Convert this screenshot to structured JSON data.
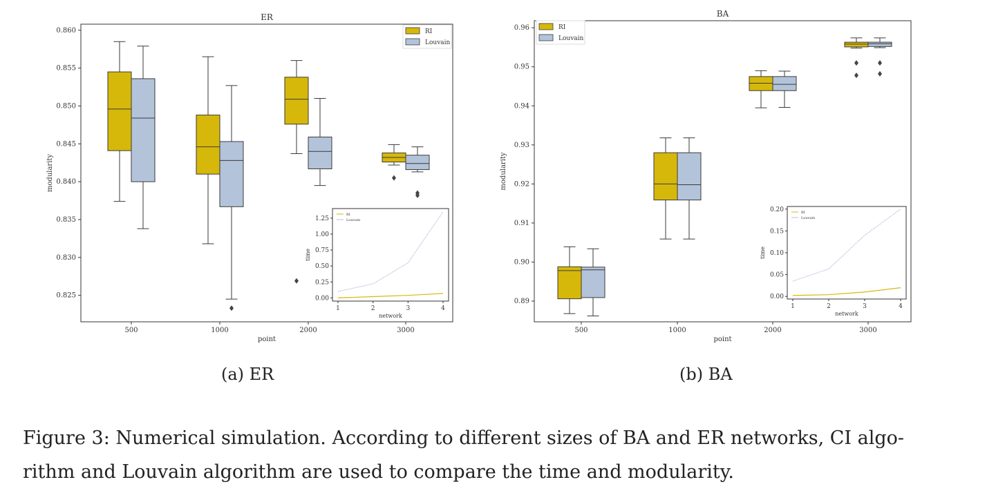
{
  "colors": {
    "ci": "#d6b80a",
    "louvain": "#b3c3da",
    "box_edge": "#3a3a3a",
    "frame": "#333333"
  },
  "panels": [
    {
      "id": "er",
      "subcaption": "(a) ER",
      "chart_data": {
        "type": "box",
        "title": "ER",
        "xlabel": "point",
        "ylabel": "modularity",
        "categories": [
          "500",
          "1000",
          "2000",
          "3000"
        ],
        "ylim": [
          0.8215,
          0.8608
        ],
        "yticks": [
          "0.825",
          "0.830",
          "0.835",
          "0.840",
          "0.845",
          "0.850",
          "0.855",
          "0.860"
        ],
        "legend": {
          "location": "top-right",
          "entries": [
            "RI",
            "Louvain"
          ]
        },
        "series": [
          {
            "name": "RI",
            "boxes": [
              {
                "min": 0.8374,
                "q1": 0.8441,
                "median": 0.8496,
                "q3": 0.8545,
                "max": 0.8585,
                "outliers": []
              },
              {
                "min": 0.8318,
                "q1": 0.841,
                "median": 0.8446,
                "q3": 0.8488,
                "max": 0.8565,
                "outliers": []
              },
              {
                "min": 0.8437,
                "q1": 0.8476,
                "median": 0.8509,
                "q3": 0.8538,
                "max": 0.856,
                "outliers": [
                  0.8269
                ]
              },
              {
                "min": 0.8422,
                "q1": 0.8426,
                "median": 0.8432,
                "q3": 0.8438,
                "max": 0.8449,
                "outliers": [
                  0.8405
                ]
              }
            ]
          },
          {
            "name": "Louvain",
            "boxes": [
              {
                "min": 0.8338,
                "q1": 0.84,
                "median": 0.8484,
                "q3": 0.8536,
                "max": 0.8579,
                "outliers": []
              },
              {
                "min": 0.8245,
                "q1": 0.8367,
                "median": 0.8428,
                "q3": 0.8453,
                "max": 0.8527,
                "outliers": [
                  0.8233
                ]
              },
              {
                "min": 0.8395,
                "q1": 0.8417,
                "median": 0.844,
                "q3": 0.8459,
                "max": 0.851,
                "outliers": []
              },
              {
                "min": 0.8413,
                "q1": 0.8416,
                "median": 0.8424,
                "q3": 0.8435,
                "max": 0.8446,
                "outliers": [
                  0.8385,
                  0.8382
                ]
              }
            ]
          }
        ],
        "inset": {
          "type": "line",
          "xlabel": "network",
          "ylabel": "time",
          "x": [
            1,
            2,
            3,
            4
          ],
          "xticks": [
            "1",
            "2",
            "3",
            "4"
          ],
          "ylim": [
            -0.05,
            1.4
          ],
          "yticks": [
            "0.00",
            "0.25",
            "0.50",
            "0.75",
            "1.00",
            "1.25"
          ],
          "legend": [
            "RI",
            "Louvain"
          ],
          "series": [
            {
              "name": "RI",
              "values": [
                0.0,
                0.02,
                0.04,
                0.07
              ]
            },
            {
              "name": "Louvain",
              "values": [
                0.1,
                0.22,
                0.55,
                1.35
              ]
            }
          ]
        }
      }
    },
    {
      "id": "ba",
      "subcaption": "(b) BA",
      "chart_data": {
        "type": "box",
        "title": "BA",
        "xlabel": "point",
        "ylabel": "modularity",
        "categories": [
          "500",
          "1000",
          "2000",
          "3000"
        ],
        "ylim": [
          0.8847,
          0.9618
        ],
        "yticks": [
          "0.89",
          "0.90",
          "0.91",
          "0.92",
          "0.93",
          "0.94",
          "0.95",
          "0.96"
        ],
        "legend": {
          "location": "top-left",
          "entries": [
            "RI",
            "Louvain"
          ]
        },
        "series": [
          {
            "name": "RI",
            "boxes": [
              {
                "min": 0.8868,
                "q1": 0.8906,
                "median": 0.8978,
                "q3": 0.8988,
                "max": 0.9039,
                "outliers": []
              },
              {
                "min": 0.9059,
                "q1": 0.9159,
                "median": 0.92,
                "q3": 0.928,
                "max": 0.9318,
                "outliers": []
              },
              {
                "min": 0.9395,
                "q1": 0.9439,
                "median": 0.9458,
                "q3": 0.9475,
                "max": 0.949,
                "outliers": []
              },
              {
                "min": 0.9548,
                "q1": 0.9551,
                "median": 0.9558,
                "q3": 0.9563,
                "max": 0.9574,
                "outliers": [
                  0.951,
                  0.9478
                ]
              }
            ]
          },
          {
            "name": "Louvain",
            "boxes": [
              {
                "min": 0.8862,
                "q1": 0.8909,
                "median": 0.898,
                "q3": 0.8987,
                "max": 0.9034,
                "outliers": []
              },
              {
                "min": 0.9059,
                "q1": 0.9159,
                "median": 0.9198,
                "q3": 0.928,
                "max": 0.9318,
                "outliers": []
              },
              {
                "min": 0.9396,
                "q1": 0.9439,
                "median": 0.9455,
                "q3": 0.9475,
                "max": 0.9489,
                "outliers": []
              },
              {
                "min": 0.9549,
                "q1": 0.9552,
                "median": 0.9559,
                "q3": 0.9563,
                "max": 0.9574,
                "outliers": [
                  0.951,
                  0.9482
                ]
              }
            ]
          }
        ],
        "inset": {
          "type": "line",
          "xlabel": "network",
          "ylabel": "time",
          "x": [
            1,
            2,
            3,
            4
          ],
          "xticks": [
            "1",
            "2",
            "3",
            "4"
          ],
          "ylim": [
            -0.006,
            0.206
          ],
          "yticks": [
            "0.00",
            "0.05",
            "0.10",
            "0.15",
            "0.20"
          ],
          "legend": [
            "RI",
            "Louvain"
          ],
          "series": [
            {
              "name": "RI",
              "values": [
                0.002,
                0.004,
                0.01,
                0.02
              ]
            },
            {
              "name": "Louvain",
              "values": [
                0.035,
                0.063,
                0.14,
                0.2
              ]
            }
          ]
        }
      }
    }
  ],
  "caption": {
    "line1": "Figure 3: Numerical simulation. According to different sizes of BA and ER networks, CI algo-",
    "line2": "rithm and Louvain algorithm are used to compare the time and modularity."
  }
}
